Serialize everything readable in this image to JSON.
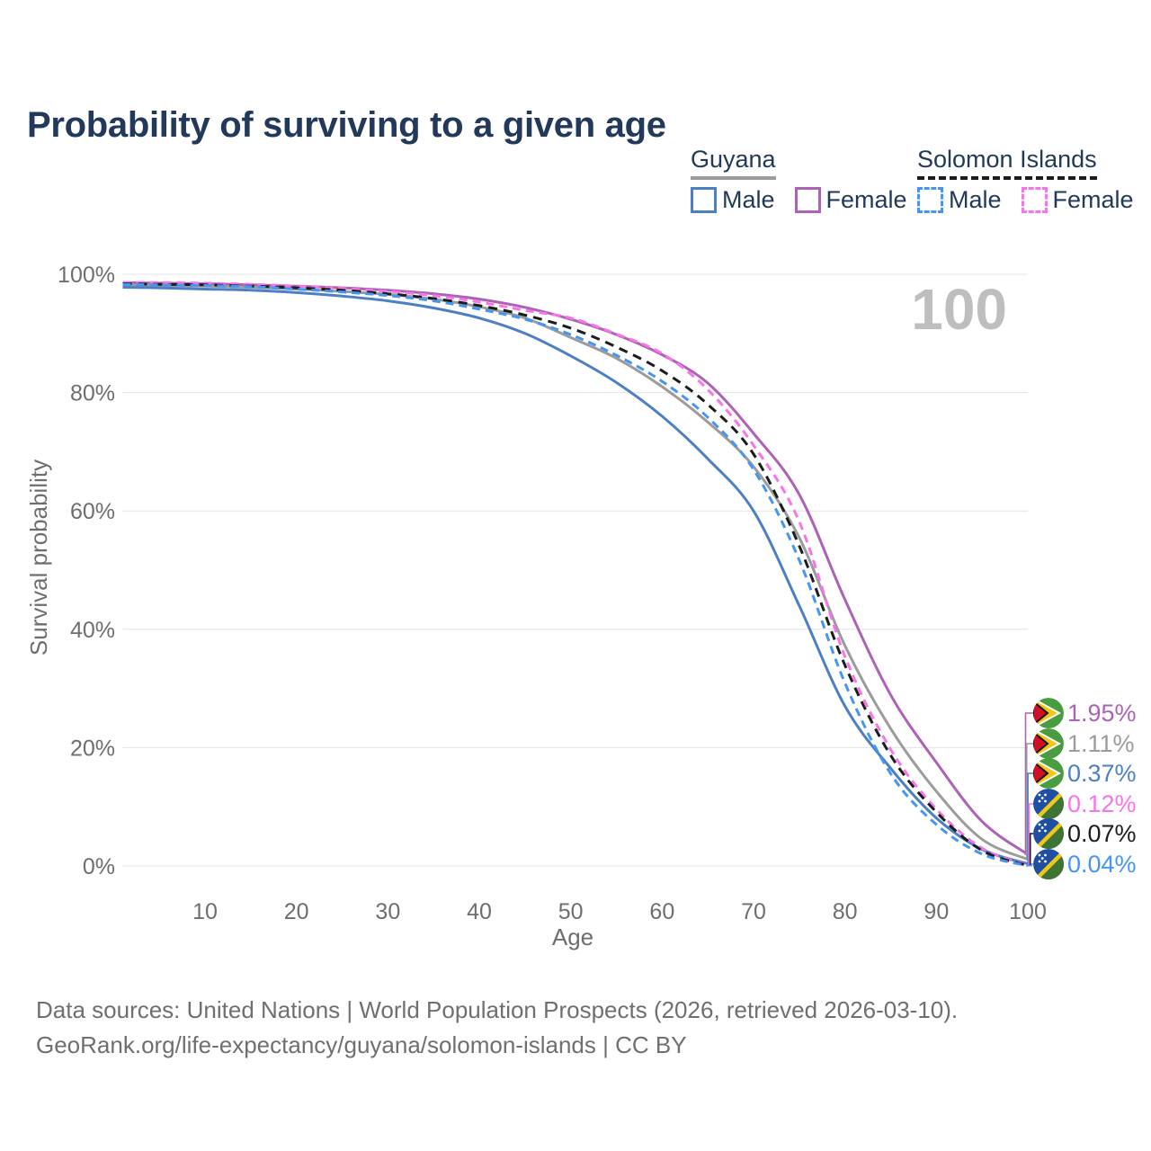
{
  "title": "Probability of surviving to a given age",
  "watermark": "100",
  "legend": {
    "groups": [
      {
        "id": "guyana",
        "title": "Guyana",
        "underline_style": "solid",
        "underline_color": "#9B9B9B",
        "items": [
          {
            "label": "Male",
            "color": "#4C7FC4",
            "dashed": false
          },
          {
            "label": "Female",
            "color": "#AC62B6",
            "dashed": false
          }
        ]
      },
      {
        "id": "solomon-islands",
        "title": "Solomon Islands",
        "underline_style": "dashed",
        "underline_color": "#1C1C1C",
        "items": [
          {
            "label": "Male",
            "color": "#4495F5",
            "dashed": true
          },
          {
            "label": "Female",
            "color": "#F973E9",
            "dashed": true
          }
        ]
      }
    ]
  },
  "chart_data": {
    "type": "line",
    "title": "Probability of surviving to a given age",
    "xlabel": "Age",
    "ylabel": "Survival probability",
    "xlim": [
      1,
      100
    ],
    "ylim": [
      0,
      100
    ],
    "grid": "horizontal",
    "legend_position": "top-right",
    "x_ticks": [
      10,
      20,
      30,
      40,
      50,
      60,
      70,
      80,
      90,
      100
    ],
    "y_ticks": [
      {
        "value": 0,
        "label": "0%"
      },
      {
        "value": 20,
        "label": "20%"
      },
      {
        "value": 40,
        "label": "40%"
      },
      {
        "value": 60,
        "label": "60%"
      },
      {
        "value": 80,
        "label": "80%"
      },
      {
        "value": 100,
        "label": "100%"
      }
    ],
    "ages": [
      1,
      5,
      10,
      15,
      20,
      25,
      30,
      35,
      40,
      45,
      50,
      55,
      60,
      65,
      70,
      75,
      80,
      85,
      90,
      95,
      100
    ],
    "series": [
      {
        "name": "Guyana Female",
        "country": "Guyana",
        "sex": "Female",
        "color": "#AC62B6",
        "dashed": false,
        "flag": "guyana",
        "end_label": "1.95%",
        "values": [
          98.6,
          98.5,
          98.4,
          98.2,
          98.0,
          97.7,
          97.3,
          96.7,
          95.8,
          94.4,
          92.4,
          89.8,
          86.4,
          81.6,
          73.1,
          62.8,
          45.0,
          28.9,
          17.5,
          7.5,
          1.95
        ]
      },
      {
        "name": "Guyana",
        "country": "Guyana",
        "sex": "Both",
        "color": "#9C9C9C",
        "dashed": false,
        "flag": "guyana",
        "end_label": "1.11%",
        "values": [
          98.2,
          98.1,
          98.0,
          97.8,
          97.5,
          97.1,
          96.6,
          95.8,
          94.5,
          92.6,
          89.3,
          85.8,
          81.0,
          75.0,
          67.5,
          55.5,
          37.2,
          23.2,
          12.6,
          4.5,
          1.11
        ]
      },
      {
        "name": "Guyana Male",
        "country": "Guyana",
        "sex": "Male",
        "color": "#4C7FC4",
        "dashed": false,
        "flag": "guyana",
        "end_label": "0.37%",
        "values": [
          97.8,
          97.7,
          97.5,
          97.3,
          96.9,
          96.3,
          95.5,
          94.3,
          92.6,
          90.0,
          86.2,
          81.7,
          76.0,
          68.8,
          60.0,
          44.0,
          27.0,
          16.5,
          8.1,
          2.8,
          0.37
        ]
      },
      {
        "name": "Solomon Islands Female",
        "country": "Solomon Islands",
        "sex": "Female",
        "color": "#F973E9",
        "dashed": true,
        "flag": "solomon-islands",
        "end_label": "0.12%",
        "values": [
          98.6,
          98.6,
          98.5,
          98.3,
          98.0,
          97.6,
          97.1,
          96.4,
          95.3,
          93.9,
          92.6,
          89.9,
          86.6,
          80.5,
          71.1,
          58.2,
          35.4,
          19.7,
          9.6,
          3.0,
          0.12
        ]
      },
      {
        "name": "Solomon Islands",
        "country": "Solomon Islands",
        "sex": "Both",
        "color": "#1C1C1C",
        "dashed": true,
        "flag": "solomon-islands",
        "end_label": "0.07%",
        "values": [
          98.4,
          98.3,
          98.2,
          98.0,
          97.7,
          97.3,
          96.7,
          95.9,
          94.7,
          93.1,
          90.9,
          87.7,
          83.7,
          78.0,
          69.6,
          54.1,
          33.9,
          18.7,
          9.1,
          2.6,
          0.07
        ]
      },
      {
        "name": "Solomon Islands Male",
        "country": "Solomon Islands",
        "sex": "Male",
        "color": "#4495F5",
        "dashed": true,
        "flag": "solomon-islands",
        "end_label": "0.04%",
        "values": [
          98.3,
          98.2,
          98.1,
          97.9,
          97.5,
          97.0,
          96.4,
          95.5,
          94.1,
          92.4,
          89.8,
          86.3,
          81.9,
          75.8,
          67.0,
          51.7,
          30.9,
          15.6,
          7.0,
          2.0,
          0.04
        ]
      }
    ],
    "colors": {
      "grid": "#E4E4E4",
      "axis_text": "#6E6E6E",
      "watermark": "#BEBEBE",
      "title_text": "#22395B"
    }
  },
  "footer": {
    "line1": "Data sources: United Nations | World Population Prospects (2026, retrieved 2026-03-10).",
    "line2": "GeoRank.org/life-expectancy/guyana/solomon-islands | CC BY"
  }
}
